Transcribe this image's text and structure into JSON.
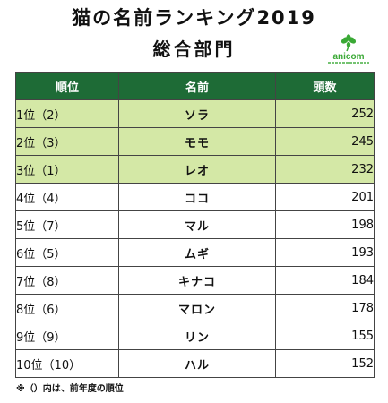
{
  "title": "猫の名前ランキング2019",
  "subtitle": "総合部門",
  "logo": {
    "text": "anicom",
    "icon": "clover-icon",
    "brand_color": "#3aa935"
  },
  "table": {
    "header_color": "#1e6b36",
    "highlight_color": "#d4e8a6",
    "headers": [
      "順位",
      "名前",
      "頭数"
    ],
    "rows": [
      {
        "rank": "1位（2）",
        "name": "ソラ",
        "count": "252",
        "highlight": true
      },
      {
        "rank": "2位（3）",
        "name": "モモ",
        "count": "245",
        "highlight": true
      },
      {
        "rank": "3位（1）",
        "name": "レオ",
        "count": "232",
        "highlight": true
      },
      {
        "rank": "4位（4）",
        "name": "ココ",
        "count": "201",
        "highlight": false
      },
      {
        "rank": "5位（7）",
        "name": "マル",
        "count": "198",
        "highlight": false
      },
      {
        "rank": "6位（5）",
        "name": "ムギ",
        "count": "193",
        "highlight": false
      },
      {
        "rank": "7位（8）",
        "name": "キナコ",
        "count": "184",
        "highlight": false
      },
      {
        "rank": "8位（6）",
        "name": "マロン",
        "count": "178",
        "highlight": false
      },
      {
        "rank": "9位（9）",
        "name": "リン",
        "count": "155",
        "highlight": false
      },
      {
        "rank": "10位（10）",
        "name": "ハル",
        "count": "152",
        "highlight": false
      }
    ]
  },
  "footnote": "※（）内は、前年度の順位"
}
